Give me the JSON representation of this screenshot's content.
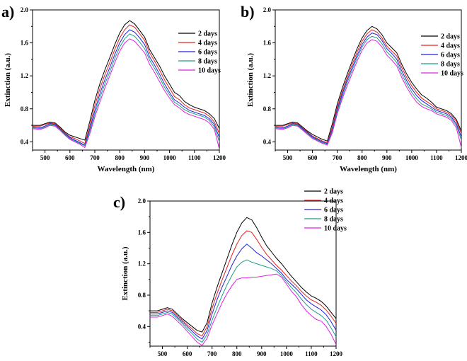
{
  "chart_data": [
    {
      "panel": "a)",
      "type": "line",
      "xlabel": "Wavelength (nm)",
      "ylabel": "Extinction (a.u.)",
      "xlim": [
        450,
        1200
      ],
      "ylim": [
        0.3,
        2.0
      ],
      "xticks": [
        500,
        600,
        700,
        800,
        900,
        1000,
        1100,
        1200
      ],
      "yticks": [
        0.4,
        0.8,
        1.2,
        1.6,
        2.0
      ],
      "legend_position": "top-right",
      "x": [
        450,
        480,
        500,
        520,
        540,
        560,
        580,
        600,
        620,
        640,
        660,
        680,
        700,
        720,
        740,
        760,
        780,
        800,
        820,
        840,
        860,
        880,
        900,
        920,
        940,
        960,
        980,
        1000,
        1020,
        1040,
        1060,
        1080,
        1100,
        1120,
        1140,
        1160,
        1180,
        1200
      ],
      "series": [
        {
          "name": "2 days",
          "color": "#000000",
          "values": [
            0.6,
            0.6,
            0.62,
            0.64,
            0.63,
            0.58,
            0.52,
            0.48,
            0.46,
            0.44,
            0.42,
            0.65,
            0.9,
            1.1,
            1.27,
            1.42,
            1.58,
            1.72,
            1.82,
            1.87,
            1.83,
            1.75,
            1.67,
            1.52,
            1.42,
            1.32,
            1.2,
            1.1,
            1.0,
            0.96,
            0.89,
            0.85,
            0.82,
            0.8,
            0.78,
            0.74,
            0.68,
            0.56
          ]
        },
        {
          "name": "4 days",
          "color": "#e8201e",
          "values": [
            0.59,
            0.59,
            0.61,
            0.63,
            0.62,
            0.57,
            0.51,
            0.46,
            0.44,
            0.41,
            0.38,
            0.6,
            0.84,
            1.04,
            1.21,
            1.36,
            1.52,
            1.66,
            1.76,
            1.82,
            1.79,
            1.71,
            1.63,
            1.48,
            1.38,
            1.27,
            1.15,
            1.05,
            0.95,
            0.91,
            0.85,
            0.81,
            0.79,
            0.77,
            0.75,
            0.71,
            0.64,
            0.5
          ]
        },
        {
          "name": "6 days",
          "color": "#2020e0",
          "values": [
            0.58,
            0.57,
            0.59,
            0.62,
            0.61,
            0.56,
            0.5,
            0.45,
            0.42,
            0.39,
            0.36,
            0.56,
            0.78,
            0.98,
            1.15,
            1.3,
            1.46,
            1.6,
            1.7,
            1.76,
            1.73,
            1.66,
            1.58,
            1.43,
            1.33,
            1.22,
            1.1,
            1.0,
            0.91,
            0.87,
            0.82,
            0.78,
            0.76,
            0.74,
            0.72,
            0.68,
            0.61,
            0.45
          ]
        },
        {
          "name": "8 days",
          "color": "#1a9e8c",
          "values": [
            0.57,
            0.56,
            0.58,
            0.61,
            0.6,
            0.55,
            0.49,
            0.44,
            0.41,
            0.38,
            0.35,
            0.53,
            0.74,
            0.93,
            1.1,
            1.25,
            1.41,
            1.55,
            1.65,
            1.71,
            1.68,
            1.61,
            1.53,
            1.39,
            1.29,
            1.18,
            1.06,
            0.97,
            0.88,
            0.84,
            0.79,
            0.76,
            0.74,
            0.72,
            0.7,
            0.66,
            0.58,
            0.4
          ]
        },
        {
          "name": "10 days",
          "color": "#e020e0",
          "values": [
            0.56,
            0.55,
            0.57,
            0.6,
            0.59,
            0.54,
            0.48,
            0.43,
            0.4,
            0.37,
            0.33,
            0.5,
            0.7,
            0.88,
            1.05,
            1.2,
            1.36,
            1.5,
            1.6,
            1.65,
            1.62,
            1.55,
            1.48,
            1.34,
            1.24,
            1.13,
            1.02,
            0.93,
            0.85,
            0.81,
            0.76,
            0.73,
            0.71,
            0.69,
            0.67,
            0.63,
            0.55,
            0.31
          ]
        }
      ]
    },
    {
      "panel": "b)",
      "type": "line",
      "xlabel": "Wavelength (nm)",
      "ylabel": "Extinction (a.u.)",
      "xlim": [
        450,
        1200
      ],
      "ylim": [
        0.3,
        2.0
      ],
      "xticks": [
        500,
        600,
        700,
        800,
        900,
        1000,
        1100,
        1200
      ],
      "yticks": [
        0.4,
        0.8,
        1.2,
        1.6,
        2.0
      ],
      "legend_position": "top-right",
      "x": [
        450,
        480,
        500,
        520,
        540,
        560,
        580,
        600,
        620,
        640,
        660,
        680,
        700,
        720,
        740,
        760,
        780,
        800,
        820,
        840,
        860,
        880,
        900,
        920,
        940,
        960,
        980,
        1000,
        1020,
        1040,
        1060,
        1080,
        1100,
        1120,
        1140,
        1160,
        1180,
        1200
      ],
      "series": [
        {
          "name": "2 days",
          "color": "#000000",
          "values": [
            0.6,
            0.6,
            0.62,
            0.64,
            0.63,
            0.58,
            0.53,
            0.49,
            0.46,
            0.43,
            0.41,
            0.62,
            0.86,
            1.05,
            1.22,
            1.38,
            1.53,
            1.66,
            1.75,
            1.8,
            1.77,
            1.7,
            1.6,
            1.54,
            1.48,
            1.34,
            1.22,
            1.12,
            1.04,
            0.97,
            0.93,
            0.88,
            0.82,
            0.8,
            0.78,
            0.74,
            0.67,
            0.53
          ]
        },
        {
          "name": "4 days",
          "color": "#e8201e",
          "values": [
            0.59,
            0.59,
            0.61,
            0.63,
            0.62,
            0.57,
            0.52,
            0.47,
            0.44,
            0.41,
            0.39,
            0.58,
            0.82,
            1.01,
            1.18,
            1.34,
            1.49,
            1.62,
            1.71,
            1.76,
            1.73,
            1.66,
            1.56,
            1.5,
            1.44,
            1.3,
            1.18,
            1.08,
            1.0,
            0.93,
            0.89,
            0.85,
            0.8,
            0.78,
            0.76,
            0.72,
            0.65,
            0.5
          ]
        },
        {
          "name": "6 days",
          "color": "#2020e0",
          "values": [
            0.58,
            0.57,
            0.59,
            0.62,
            0.61,
            0.56,
            0.51,
            0.46,
            0.43,
            0.4,
            0.38,
            0.55,
            0.79,
            0.98,
            1.15,
            1.3,
            1.45,
            1.58,
            1.67,
            1.72,
            1.7,
            1.63,
            1.53,
            1.47,
            1.4,
            1.26,
            1.14,
            1.04,
            0.96,
            0.9,
            0.86,
            0.82,
            0.78,
            0.76,
            0.74,
            0.7,
            0.62,
            0.46
          ]
        },
        {
          "name": "8 days",
          "color": "#1a9e8c",
          "values": [
            0.57,
            0.56,
            0.58,
            0.61,
            0.6,
            0.55,
            0.5,
            0.45,
            0.42,
            0.39,
            0.37,
            0.53,
            0.77,
            0.95,
            1.12,
            1.27,
            1.42,
            1.55,
            1.64,
            1.68,
            1.66,
            1.59,
            1.49,
            1.43,
            1.36,
            1.22,
            1.1,
            1.0,
            0.92,
            0.86,
            0.83,
            0.8,
            0.76,
            0.74,
            0.72,
            0.68,
            0.6,
            0.42
          ]
        },
        {
          "name": "10 days",
          "color": "#e020e0",
          "values": [
            0.56,
            0.55,
            0.57,
            0.6,
            0.59,
            0.54,
            0.49,
            0.44,
            0.41,
            0.38,
            0.36,
            0.51,
            0.74,
            0.92,
            1.08,
            1.23,
            1.38,
            1.51,
            1.6,
            1.64,
            1.62,
            1.55,
            1.45,
            1.39,
            1.32,
            1.18,
            1.06,
            0.96,
            0.88,
            0.83,
            0.8,
            0.78,
            0.74,
            0.72,
            0.7,
            0.66,
            0.57,
            0.33
          ]
        }
      ]
    },
    {
      "panel": "c)",
      "type": "line",
      "xlabel": "Wavelength (nm)",
      "ylabel": "Extinction (a.u.)",
      "xlim": [
        450,
        1200
      ],
      "ylim": [
        0.15,
        2.0
      ],
      "xticks": [
        500,
        600,
        700,
        800,
        900,
        1000,
        1100,
        1200
      ],
      "yticks": [
        0.4,
        0.8,
        1.2,
        1.6,
        2.0
      ],
      "legend_position": "top-right",
      "x": [
        450,
        480,
        500,
        520,
        540,
        560,
        580,
        600,
        620,
        640,
        660,
        680,
        700,
        720,
        740,
        760,
        780,
        800,
        820,
        840,
        860,
        880,
        900,
        920,
        940,
        960,
        980,
        1000,
        1020,
        1040,
        1060,
        1080,
        1100,
        1120,
        1140,
        1160,
        1180,
        1200
      ],
      "series": [
        {
          "name": "2 days",
          "color": "#000000",
          "values": [
            0.6,
            0.6,
            0.62,
            0.64,
            0.62,
            0.56,
            0.5,
            0.45,
            0.4,
            0.35,
            0.33,
            0.45,
            0.7,
            0.9,
            1.08,
            1.26,
            1.44,
            1.6,
            1.72,
            1.79,
            1.76,
            1.66,
            1.54,
            1.43,
            1.35,
            1.27,
            1.2,
            1.12,
            1.04,
            0.97,
            0.9,
            0.84,
            0.79,
            0.76,
            0.72,
            0.66,
            0.58,
            0.5
          ]
        },
        {
          "name": "4 days",
          "color": "#e8201e",
          "values": [
            0.58,
            0.58,
            0.6,
            0.62,
            0.6,
            0.54,
            0.48,
            0.42,
            0.37,
            0.31,
            0.28,
            0.4,
            0.63,
            0.82,
            0.99,
            1.15,
            1.31,
            1.45,
            1.56,
            1.62,
            1.6,
            1.51,
            1.41,
            1.32,
            1.25,
            1.18,
            1.12,
            1.05,
            0.98,
            0.92,
            0.85,
            0.79,
            0.74,
            0.71,
            0.67,
            0.61,
            0.53,
            0.44
          ]
        },
        {
          "name": "6 days",
          "color": "#2020e0",
          "values": [
            0.56,
            0.56,
            0.58,
            0.6,
            0.58,
            0.52,
            0.46,
            0.4,
            0.34,
            0.28,
            0.24,
            0.35,
            0.56,
            0.74,
            0.9,
            1.04,
            1.18,
            1.3,
            1.39,
            1.45,
            1.4,
            1.34,
            1.3,
            1.25,
            1.2,
            1.14,
            1.08,
            1.0,
            0.94,
            0.88,
            0.81,
            0.74,
            0.69,
            0.65,
            0.61,
            0.55,
            0.46,
            0.35
          ]
        },
        {
          "name": "8 days",
          "color": "#1a9e8c",
          "values": [
            0.54,
            0.54,
            0.56,
            0.58,
            0.56,
            0.5,
            0.44,
            0.37,
            0.31,
            0.24,
            0.2,
            0.3,
            0.48,
            0.64,
            0.79,
            0.93,
            1.05,
            1.16,
            1.22,
            1.25,
            1.22,
            1.2,
            1.18,
            1.16,
            1.14,
            1.11,
            1.05,
            0.97,
            0.9,
            0.83,
            0.75,
            0.68,
            0.62,
            0.58,
            0.54,
            0.48,
            0.38,
            0.27
          ]
        },
        {
          "name": "10 days",
          "color": "#e020e0",
          "values": [
            0.52,
            0.52,
            0.54,
            0.56,
            0.53,
            0.47,
            0.41,
            0.34,
            0.27,
            0.2,
            0.16,
            0.25,
            0.42,
            0.56,
            0.7,
            0.82,
            0.92,
            1.0,
            1.02,
            1.02,
            1.03,
            1.03,
            1.04,
            1.05,
            1.06,
            1.07,
            1.03,
            0.94,
            0.85,
            0.78,
            0.68,
            0.6,
            0.54,
            0.49,
            0.47,
            0.4,
            0.3,
            0.17
          ]
        }
      ]
    }
  ]
}
